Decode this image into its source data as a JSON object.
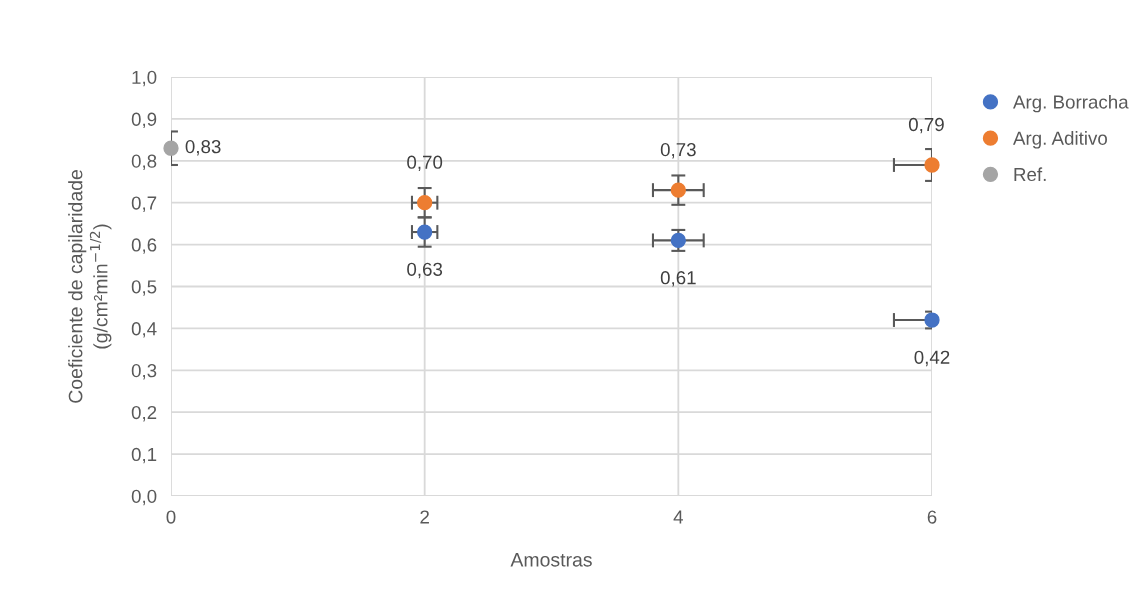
{
  "chart_data": {
    "type": "scatter",
    "xlabel": "Amostras",
    "ylabel": "Coeficiente de capilaridade\n(g/cm²min$^{−1/2}$)",
    "series": [
      {
        "name": "Arg. Borracha",
        "color": "#4472c4",
        "x": [
          2,
          4,
          6
        ],
        "values": [
          0.63,
          0.61,
          0.42
        ],
        "value_labels": [
          "0,63",
          "0,61",
          "0,42"
        ],
        "errors": [
          0.035,
          0.025,
          0.02
        ],
        "xerrors": [
          0.1,
          0.2,
          0.3
        ]
      },
      {
        "name": "Arg. Aditivo",
        "color": "#ed7d31",
        "x": [
          2,
          4,
          6
        ],
        "values": [
          0.7,
          0.73,
          0.79
        ],
        "value_labels": [
          "0,70",
          "0,73",
          "0,79"
        ],
        "errors": [
          0.035,
          0.035,
          0.038
        ],
        "xerrors": [
          0.1,
          0.2,
          0.3
        ]
      },
      {
        "name": "Ref.",
        "color": "#a5a5a5",
        "x": [
          0
        ],
        "values": [
          0.83
        ],
        "value_labels": [
          "0,83"
        ],
        "errors": [
          0.04
        ]
      }
    ],
    "marker": "circle",
    "grid": true,
    "legend": "right",
    "xlim": [
      0,
      6
    ],
    "xticks": [
      0,
      2,
      4,
      6
    ],
    "ylim": [
      0,
      1
    ],
    "yticks": [
      {
        "value": 0,
        "label": "0,0"
      },
      {
        "value": 0.1,
        "label": "0,1"
      },
      {
        "value": 0.2,
        "label": "0,2"
      },
      {
        "value": 0.3,
        "label": "0,3"
      },
      {
        "value": 0.4,
        "label": "0,4"
      },
      {
        "value": 0.5,
        "label": "0,5"
      },
      {
        "value": 0.6,
        "label": "0,6"
      },
      {
        "value": 0.7,
        "label": "0,7"
      },
      {
        "value": 0.8,
        "label": "0,8"
      },
      {
        "value": 0.9,
        "label": "0,9"
      },
      {
        "value": 1,
        "label": "1,0"
      }
    ]
  }
}
